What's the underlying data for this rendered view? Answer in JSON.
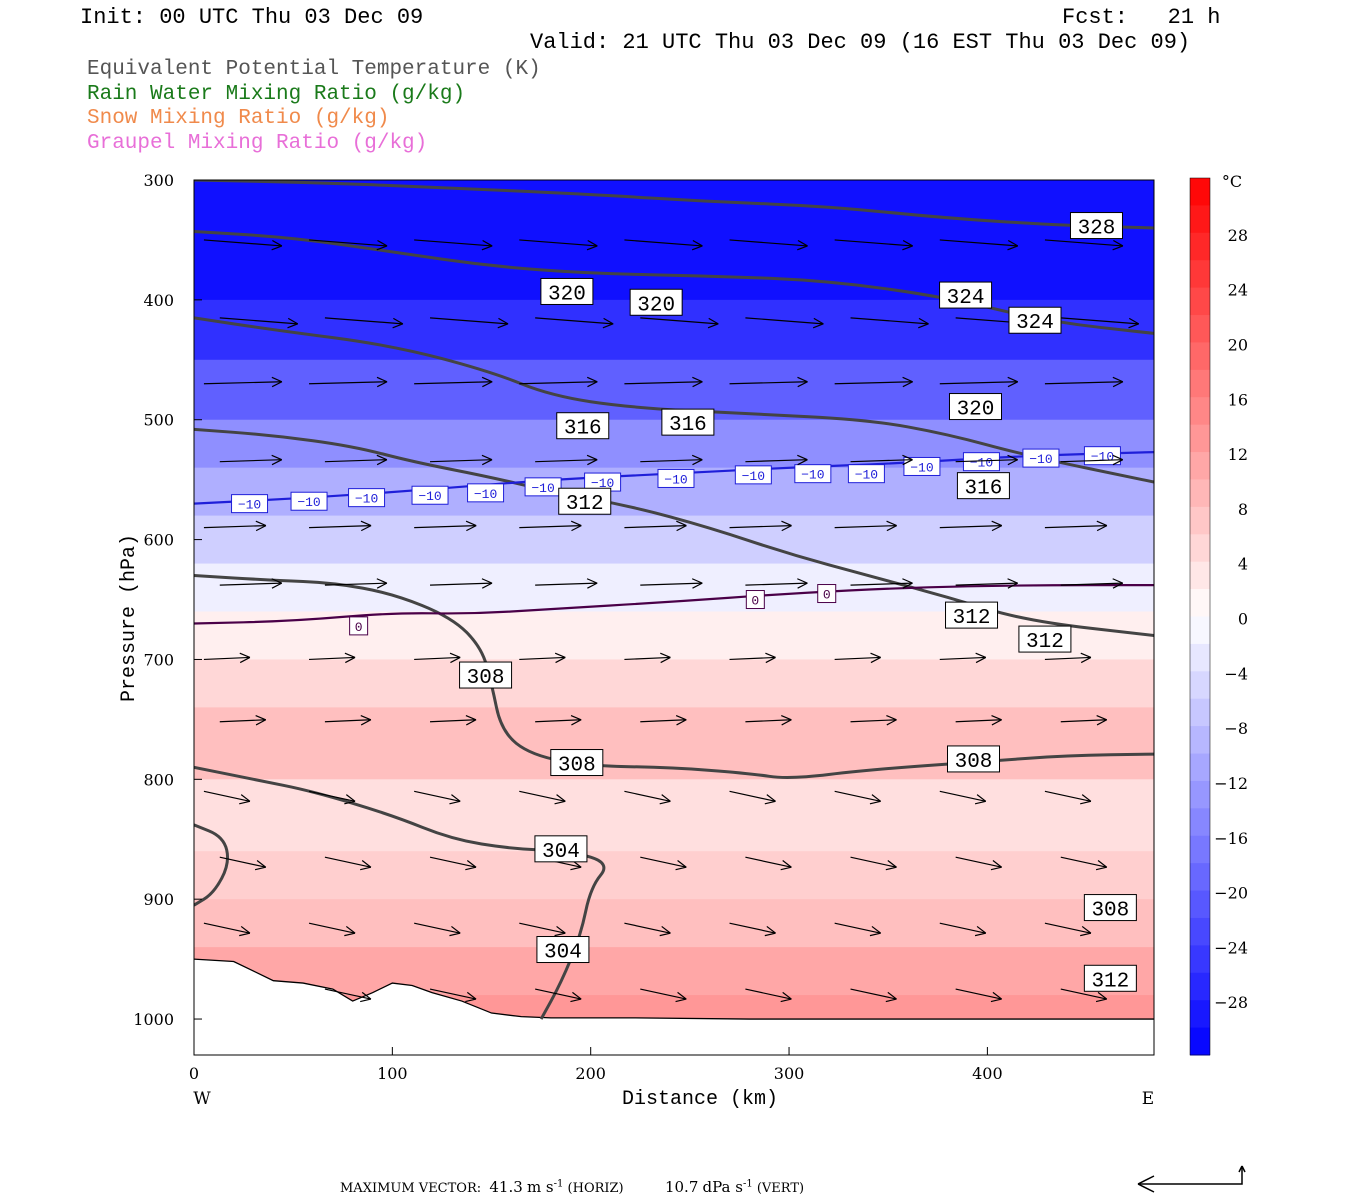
{
  "header": {
    "init": "Init: 00 UTC Thu 03 Dec 09",
    "fcst": "Fcst:   21 h",
    "valid": "Valid: 21 UTC Thu 03 Dec 09 (16 EST Thu 03 Dec 09)"
  },
  "legend": [
    {
      "label": "Equivalent Potential Temperature (K)",
      "color": "#555555"
    },
    {
      "label": "Rain Water Mixing Ratio (g/kg)",
      "color": "#1a7a1a"
    },
    {
      "label": "Snow Mixing Ratio (g/kg)",
      "color": "#f08a4b"
    },
    {
      "label": "Graupel Mixing Ratio (g/kg)",
      "color": "#e86fd8"
    }
  ],
  "chart_data": {
    "type": "cross-section",
    "xlabel": "Distance (km)",
    "ylabel": "Pressure (hPa)",
    "xlim": [
      0,
      484
    ],
    "ylim": [
      1030,
      300
    ],
    "x_ticks": [
      0,
      100,
      200,
      300,
      400
    ],
    "y_ticks": [
      300,
      400,
      500,
      600,
      700,
      800,
      900,
      1000
    ],
    "x_end_labels": {
      "left": "W",
      "right": "E"
    },
    "colorbar": {
      "unit": "°C",
      "ticks": [
        28,
        24,
        20,
        16,
        12,
        8,
        4,
        0,
        -4,
        -8,
        -12,
        -16,
        -20,
        -24,
        -28
      ],
      "range": [
        -32,
        32
      ]
    },
    "temperature_field_bands": [
      {
        "p_top": 300,
        "p_bot": 400,
        "t": -30
      },
      {
        "p_top": 400,
        "p_bot": 450,
        "t": -26
      },
      {
        "p_top": 450,
        "p_bot": 500,
        "t": -20
      },
      {
        "p_top": 500,
        "p_bot": 540,
        "t": -14
      },
      {
        "p_top": 540,
        "p_bot": 580,
        "t": -10
      },
      {
        "p_top": 580,
        "p_bot": 620,
        "t": -6
      },
      {
        "p_top": 620,
        "p_bot": 660,
        "t": -2
      },
      {
        "p_top": 660,
        "p_bot": 700,
        "t": 2
      },
      {
        "p_top": 700,
        "p_bot": 740,
        "t": 5
      },
      {
        "p_top": 740,
        "p_bot": 800,
        "t": 8
      },
      {
        "p_top": 800,
        "p_bot": 860,
        "t": 4
      },
      {
        "p_top": 860,
        "p_bot": 900,
        "t": 6
      },
      {
        "p_top": 900,
        "p_bot": 940,
        "t": 8
      },
      {
        "p_top": 940,
        "p_bot": 980,
        "t": 11
      },
      {
        "p_top": 980,
        "p_bot": 1030,
        "t": 13
      }
    ],
    "theta_e_contours": [
      {
        "value": 328,
        "points": [
          [
            0,
            300
          ],
          [
            60,
            302
          ],
          [
            120,
            306
          ],
          [
            200,
            312
          ],
          [
            260,
            318
          ],
          [
            320,
            322
          ],
          [
            380,
            332
          ],
          [
            440,
            338
          ],
          [
            484,
            340
          ]
        ]
      },
      {
        "value": 324,
        "points": [
          [
            0,
            343
          ],
          [
            50,
            348
          ],
          [
            100,
            360
          ],
          [
            150,
            372
          ],
          [
            200,
            378
          ],
          [
            260,
            380
          ],
          [
            320,
            384
          ],
          [
            380,
            398
          ],
          [
            430,
            418
          ],
          [
            484,
            428
          ]
        ]
      },
      {
        "value": 320,
        "points": [
          [
            0,
            415
          ],
          [
            40,
            425
          ],
          [
            100,
            438
          ],
          [
            150,
            460
          ],
          [
            180,
            480
          ],
          [
            220,
            490
          ],
          [
            280,
            495
          ],
          [
            340,
            500
          ],
          [
            380,
            512
          ],
          [
            420,
            530
          ],
          [
            484,
            552
          ]
        ]
      },
      {
        "value": 316,
        "points": [
          [
            0,
            508
          ],
          [
            40,
            513
          ],
          [
            80,
            522
          ],
          [
            110,
            535
          ],
          [
            150,
            548
          ],
          [
            180,
            560
          ],
          [
            220,
            572
          ],
          [
            260,
            590
          ],
          [
            300,
            612
          ],
          [
            340,
            630
          ],
          [
            380,
            648
          ],
          [
            420,
            668
          ],
          [
            484,
            680
          ]
        ]
      },
      {
        "value": 312,
        "points": [
          [
            0,
            630
          ],
          [
            40,
            634
          ],
          [
            70,
            636
          ],
          [
            100,
            645
          ],
          [
            130,
            665
          ],
          [
            145,
            690
          ],
          [
            150,
            720
          ],
          [
            155,
            760
          ],
          [
            170,
            780
          ],
          [
            200,
            789
          ],
          [
            240,
            790
          ],
          [
            280,
            795
          ],
          [
            300,
            800
          ],
          [
            340,
            792
          ],
          [
            400,
            785
          ],
          [
            440,
            780
          ],
          [
            484,
            779
          ]
        ]
      },
      {
        "value": 308,
        "points": [
          [
            0,
            790
          ],
          [
            30,
            800
          ],
          [
            60,
            810
          ],
          [
            100,
            830
          ],
          [
            130,
            850
          ],
          [
            160,
            858
          ],
          [
            190,
            860
          ],
          [
            210,
            870
          ],
          [
            200,
            890
          ],
          [
            195,
            930
          ],
          [
            185,
            970
          ],
          [
            175,
            1000
          ]
        ]
      },
      {
        "value": 304,
        "points": [
          [
            0,
            838
          ],
          [
            15,
            848
          ],
          [
            18,
            870
          ],
          [
            10,
            895
          ],
          [
            0,
            905
          ]
        ]
      }
    ],
    "contour_labels": [
      {
        "text": "328",
        "x": 455,
        "p": 338
      },
      {
        "text": "320",
        "x": 188,
        "p": 393
      },
      {
        "text": "320",
        "x": 233,
        "p": 402
      },
      {
        "text": "324",
        "x": 389,
        "p": 396
      },
      {
        "text": "324",
        "x": 424,
        "p": 417
      },
      {
        "text": "320",
        "x": 394,
        "p": 489
      },
      {
        "text": "316",
        "x": 196,
        "p": 505
      },
      {
        "text": "316",
        "x": 249,
        "p": 502
      },
      {
        "text": "316",
        "x": 398,
        "p": 555
      },
      {
        "text": "312",
        "x": 197,
        "p": 568
      },
      {
        "text": "312",
        "x": 392,
        "p": 663
      },
      {
        "text": "312",
        "x": 429,
        "p": 683
      },
      {
        "text": "308",
        "x": 147,
        "p": 713
      },
      {
        "text": "308",
        "x": 193,
        "p": 786
      },
      {
        "text": "308",
        "x": 393,
        "p": 783
      },
      {
        "text": "304",
        "x": 185,
        "p": 858
      },
      {
        "text": "304",
        "x": 186,
        "p": 942
      },
      {
        "text": "308",
        "x": 462,
        "p": 907
      },
      {
        "text": "312",
        "x": 462,
        "p": 966
      }
    ],
    "isotherms": [
      {
        "value": -10,
        "color": "#1f1fd9",
        "points": [
          [
            0,
            570
          ],
          [
            60,
            565
          ],
          [
            120,
            558
          ],
          [
            180,
            550
          ],
          [
            240,
            545
          ],
          [
            300,
            540
          ],
          [
            360,
            536
          ],
          [
            420,
            530
          ],
          [
            484,
            527
          ]
        ],
        "labels": [
          [
            28,
            570
          ],
          [
            58,
            568
          ],
          [
            87,
            565
          ],
          [
            119,
            563
          ],
          [
            147,
            561
          ],
          [
            176,
            556
          ],
          [
            206,
            552
          ],
          [
            243,
            549
          ],
          [
            282,
            546
          ],
          [
            312,
            545
          ],
          [
            339,
            545
          ],
          [
            367,
            539
          ],
          [
            397,
            535
          ],
          [
            427,
            532
          ],
          [
            458,
            530
          ]
        ]
      },
      {
        "value": 0,
        "color": "#4a0048",
        "points": [
          [
            0,
            670
          ],
          [
            50,
            668
          ],
          [
            100,
            661
          ],
          [
            140,
            662
          ],
          [
            180,
            658
          ],
          [
            240,
            652
          ],
          [
            300,
            645
          ],
          [
            360,
            640
          ],
          [
            420,
            638
          ],
          [
            484,
            638
          ]
        ],
        "labels": [
          [
            83,
            672
          ],
          [
            283,
            650
          ],
          [
            319,
            645
          ]
        ]
      }
    ],
    "max_vector": {
      "horizontal": "41.3",
      "vertical": "10.7"
    }
  },
  "footer": {
    "prefix": "MAXIMUM VECTOR:",
    "horiz_value": "41.3",
    "horiz_unit": "m s",
    "horiz_exp": "-1",
    "horiz_tag": "(HORIZ)",
    "vert_value": "10.7",
    "vert_unit": "dPa s",
    "vert_exp": "-1",
    "vert_tag": "(VERT)"
  }
}
